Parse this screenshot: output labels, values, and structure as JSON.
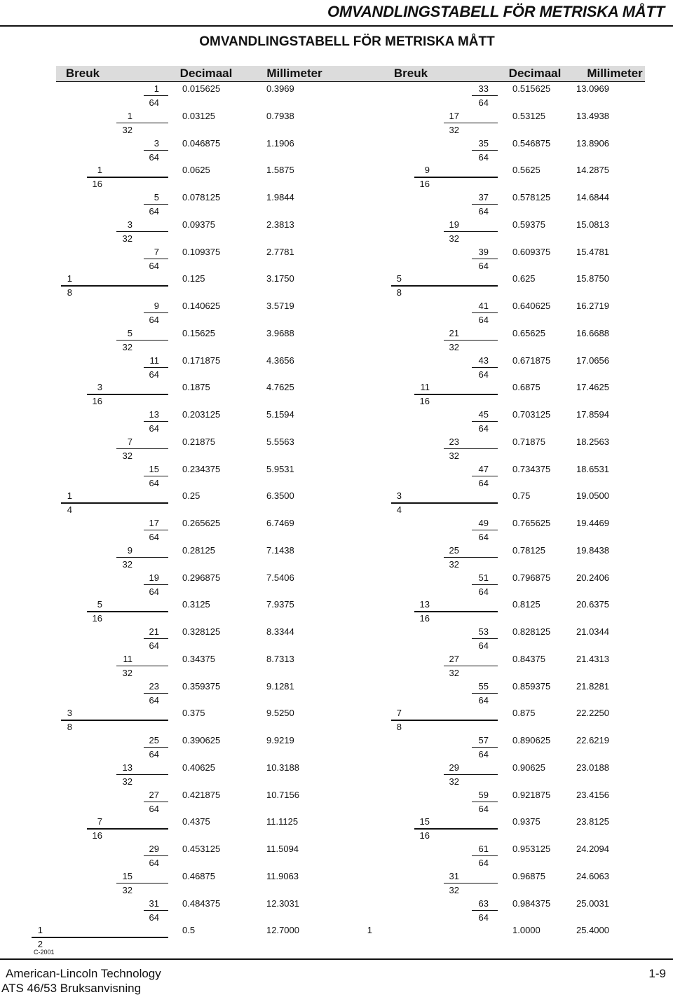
{
  "header": {
    "title": "OMVANDLINGSTABELL FÖR METRISKA MÅTT"
  },
  "page_title": "OMVANDLINGSTABELL FÖR METRISKA MÅTT",
  "columns": {
    "left_fraction": "Breuk",
    "left_decimal": "Decimaal",
    "left_mm": "Millimeter",
    "right_fraction": "Breuk",
    "right_decimal": "Decimaal",
    "right_mm": "Millimeter"
  },
  "rows": [
    {
      "num": "1",
      "den": "64",
      "dec": "0.015625",
      "mm": "0.3969"
    },
    {
      "num": "1",
      "den": "32",
      "dec": "0.03125",
      "mm": "0.7938"
    },
    {
      "num": "3",
      "den": "64",
      "dec": "0.046875",
      "mm": "1.1906"
    },
    {
      "num": "1",
      "den": "16",
      "dec": "0.0625",
      "mm": "1.5875"
    },
    {
      "num": "5",
      "den": "64",
      "dec": "0.078125",
      "mm": "1.9844"
    },
    {
      "num": "3",
      "den": "32",
      "dec": "0.09375",
      "mm": "2.3813"
    },
    {
      "num": "7",
      "den": "64",
      "dec": "0.109375",
      "mm": "2.7781"
    },
    {
      "num": "1",
      "den": "8",
      "dec": "0.125",
      "mm": "3.1750"
    },
    {
      "num": "9",
      "den": "64",
      "dec": "0.140625",
      "mm": "3.5719"
    },
    {
      "num": "5",
      "den": "32",
      "dec": "0.15625",
      "mm": "3.9688"
    },
    {
      "num": "11",
      "den": "64",
      "dec": "0.171875",
      "mm": "4.3656"
    },
    {
      "num": "3",
      "den": "16",
      "dec": "0.1875",
      "mm": "4.7625"
    },
    {
      "num": "13",
      "den": "64",
      "dec": "0.203125",
      "mm": "5.1594"
    },
    {
      "num": "7",
      "den": "32",
      "dec": "0.21875",
      "mm": "5.5563"
    },
    {
      "num": "15",
      "den": "64",
      "dec": "0.234375",
      "mm": "5.9531"
    },
    {
      "num": "1",
      "den": "4",
      "dec": "0.25",
      "mm": "6.3500"
    },
    {
      "num": "17",
      "den": "64",
      "dec": "0.265625",
      "mm": "6.7469"
    },
    {
      "num": "9",
      "den": "32",
      "dec": "0.28125",
      "mm": "7.1438"
    },
    {
      "num": "19",
      "den": "64",
      "dec": "0.296875",
      "mm": "7.5406"
    },
    {
      "num": "5",
      "den": "16",
      "dec": "0.3125",
      "mm": "7.9375"
    },
    {
      "num": "21",
      "den": "64",
      "dec": "0.328125",
      "mm": "8.3344"
    },
    {
      "num": "11",
      "den": "32",
      "dec": "0.34375",
      "mm": "8.7313"
    },
    {
      "num": "23",
      "den": "64",
      "dec": "0.359375",
      "mm": "9.1281"
    },
    {
      "num": "3",
      "den": "8",
      "dec": "0.375",
      "mm": "9.5250"
    },
    {
      "num": "25",
      "den": "64",
      "dec": "0.390625",
      "mm": "9.9219"
    },
    {
      "num": "13",
      "den": "32",
      "dec": "0.40625",
      "mm": "10.3188"
    },
    {
      "num": "27",
      "den": "64",
      "dec": "0.421875",
      "mm": "10.7156"
    },
    {
      "num": "7",
      "den": "16",
      "dec": "0.4375",
      "mm": "11.1125"
    },
    {
      "num": "29",
      "den": "64",
      "dec": "0.453125",
      "mm": "11.5094"
    },
    {
      "num": "15",
      "den": "32",
      "dec": "0.46875",
      "mm": "11.9063"
    },
    {
      "num": "31",
      "den": "64",
      "dec": "0.484375",
      "mm": "12.3031"
    },
    {
      "num": "1",
      "den": "2",
      "dec": "0.5",
      "mm": "12.7000"
    },
    {
      "num": "33",
      "den": "64",
      "dec": "0.515625",
      "mm": "13.0969"
    },
    {
      "num": "17",
      "den": "32",
      "dec": "0.53125",
      "mm": "13.4938"
    },
    {
      "num": "35",
      "den": "64",
      "dec": "0.546875",
      "mm": "13.8906"
    },
    {
      "num": "9",
      "den": "16",
      "dec": "0.5625",
      "mm": "14.2875"
    },
    {
      "num": "37",
      "den": "64",
      "dec": "0.578125",
      "mm": "14.6844"
    },
    {
      "num": "19",
      "den": "32",
      "dec": "0.59375",
      "mm": "15.0813"
    },
    {
      "num": "39",
      "den": "64",
      "dec": "0.609375",
      "mm": "15.4781"
    },
    {
      "num": "5",
      "den": "8",
      "dec": "0.625",
      "mm": "15.8750"
    },
    {
      "num": "41",
      "den": "64",
      "dec": "0.640625",
      "mm": "16.2719"
    },
    {
      "num": "21",
      "den": "32",
      "dec": "0.65625",
      "mm": "16.6688"
    },
    {
      "num": "43",
      "den": "64",
      "dec": "0.671875",
      "mm": "17.0656"
    },
    {
      "num": "11",
      "den": "16",
      "dec": "0.6875",
      "mm": "17.4625"
    },
    {
      "num": "45",
      "den": "64",
      "dec": "0.703125",
      "mm": "17.8594"
    },
    {
      "num": "23",
      "den": "32",
      "dec": "0.71875",
      "mm": "18.2563"
    },
    {
      "num": "47",
      "den": "64",
      "dec": "0.734375",
      "mm": "18.6531"
    },
    {
      "num": "3",
      "den": "4",
      "dec": "0.75",
      "mm": "19.0500"
    },
    {
      "num": "49",
      "den": "64",
      "dec": "0.765625",
      "mm": "19.4469"
    },
    {
      "num": "25",
      "den": "32",
      "dec": "0.78125",
      "mm": "19.8438"
    },
    {
      "num": "51",
      "den": "64",
      "dec": "0.796875",
      "mm": "20.2406"
    },
    {
      "num": "13",
      "den": "16",
      "dec": "0.8125",
      "mm": "20.6375"
    },
    {
      "num": "53",
      "den": "64",
      "dec": "0.828125",
      "mm": "21.0344"
    },
    {
      "num": "27",
      "den": "32",
      "dec": "0.84375",
      "mm": "21.4313"
    },
    {
      "num": "55",
      "den": "64",
      "dec": "0.859375",
      "mm": "21.8281"
    },
    {
      "num": "7",
      "den": "8",
      "dec": "0.875",
      "mm": "22.2250"
    },
    {
      "num": "57",
      "den": "64",
      "dec": "0.890625",
      "mm": "22.6219"
    },
    {
      "num": "29",
      "den": "32",
      "dec": "0.90625",
      "mm": "23.0188"
    },
    {
      "num": "59",
      "den": "64",
      "dec": "0.921875",
      "mm": "23.4156"
    },
    {
      "num": "15",
      "den": "16",
      "dec": "0.9375",
      "mm": "23.8125"
    },
    {
      "num": "61",
      "den": "64",
      "dec": "0.953125",
      "mm": "24.2094"
    },
    {
      "num": "31",
      "den": "32",
      "dec": "0.96875",
      "mm": "24.6063"
    },
    {
      "num": "63",
      "den": "64",
      "dec": "0.984375",
      "mm": "25.0031"
    },
    {
      "num": "1",
      "den": "",
      "dec": "1.0000",
      "mm": "25.4000"
    }
  ],
  "figure_code": "C-2001",
  "footer": {
    "company": "American-Lincoln Technology",
    "manual": "ATS 46/53 Bruksanvisning",
    "page": "1-9"
  }
}
